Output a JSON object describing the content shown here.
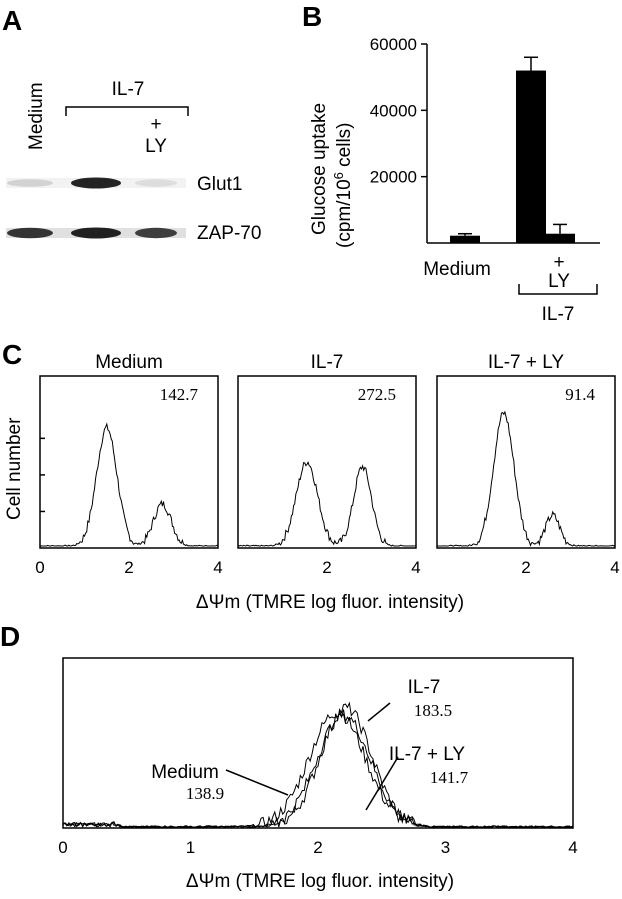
{
  "panels": {
    "A": "A",
    "B": "B",
    "C": "C",
    "D": "D"
  },
  "blot": {
    "lane_medium": "Medium",
    "group_il7": "IL-7",
    "plus": "+",
    "ly": "LY",
    "band1": "Glut1",
    "band2": "ZAP-70",
    "lanes": [
      {
        "name": "Medium",
        "glut1": 0.15,
        "zap70": 0.9
      },
      {
        "name": "IL-7",
        "glut1": 1.0,
        "zap70": 1.0
      },
      {
        "name": "IL-7 + LY",
        "glut1": 0.1,
        "zap70": 0.85
      }
    ]
  },
  "chart_data": [
    {
      "type": "bar",
      "panel": "B",
      "categories": [
        "Medium",
        "IL-7",
        "IL-7 + LY"
      ],
      "cat_label_medium": "Medium",
      "cat_plus": "+",
      "cat_ly": "LY",
      "group_label": "IL-7",
      "values": [
        2200,
        52000,
        2800
      ],
      "errors": [
        600,
        4000,
        2800
      ],
      "ylabel_line1": "Glucose uptake",
      "ylabel_line2_pre": "(cpm/10",
      "ylabel_line2_sup": "6",
      "ylabel_line2_post": " cells)",
      "yticks": [
        20000,
        40000,
        60000
      ],
      "ytick_labels": [
        "20000",
        "40000",
        "60000"
      ],
      "ylim": [
        0,
        60000
      ]
    },
    {
      "type": "area",
      "panel": "C",
      "ylabel": "Cell number",
      "xlabel": "ΔΨm (TMRE log fluor. intensity)",
      "xlim": [
        0,
        4
      ],
      "xticks": [
        "0",
        "2",
        "4"
      ],
      "series": [
        {
          "name": "Medium",
          "value_label": "142.7",
          "peaks": [
            {
              "x": 1.5,
              "h": 0.73,
              "w": 0.23
            },
            {
              "x": 2.75,
              "h": 0.26,
              "w": 0.2
            }
          ]
        },
        {
          "name": "IL-7",
          "value_label": "272.5",
          "peaks": [
            {
              "x": 1.55,
              "h": 0.52,
              "w": 0.24
            },
            {
              "x": 2.8,
              "h": 0.49,
              "w": 0.2
            }
          ]
        },
        {
          "name": "IL-7 + LY",
          "value_label": "91.4",
          "peaks": [
            {
              "x": 1.5,
              "h": 0.82,
              "w": 0.23
            },
            {
              "x": 2.6,
              "h": 0.19,
              "w": 0.16
            }
          ]
        }
      ]
    },
    {
      "type": "area",
      "panel": "D",
      "xlabel": "ΔΨm (TMRE log fluor. intensity)",
      "xlim": [
        0,
        4
      ],
      "xticks": [
        "0",
        "1",
        "2",
        "3",
        "4"
      ],
      "series": [
        {
          "name": "Medium",
          "value_label": "138.9",
          "center": 2.15,
          "h": 0.82,
          "w": 0.22
        },
        {
          "name": "IL-7",
          "value_label": "183.5",
          "center": 2.22,
          "h": 0.85,
          "w": 0.2
        },
        {
          "name": "IL-7 + LY",
          "value_label": "141.7",
          "center": 2.2,
          "h": 0.8,
          "w": 0.21
        }
      ]
    }
  ]
}
